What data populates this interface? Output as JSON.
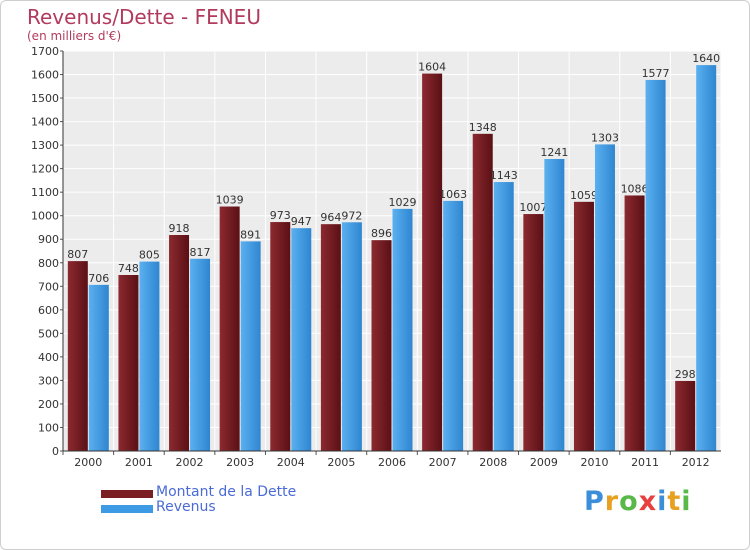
{
  "header": {
    "title": "Revenus/Dette - FENEU",
    "subtitle": "(en milliers d'€)"
  },
  "chart_data": {
    "type": "bar",
    "categories": [
      "2000",
      "2001",
      "2002",
      "2003",
      "2004",
      "2005",
      "2006",
      "2007",
      "2008",
      "2009",
      "2010",
      "2011",
      "2012"
    ],
    "series": [
      {
        "name": "Montant de la Dette",
        "values": [
          807,
          748,
          918,
          1039,
          973,
          964,
          896,
          1604,
          1348,
          1007,
          1059,
          1086,
          298
        ],
        "labels": [
          "807",
          "748",
          "918",
          "1039",
          "973",
          "964",
          "896",
          "1604",
          "1348",
          "1007",
          "1059",
          "1086",
          "298"
        ],
        "color": "#7a1e24"
      },
      {
        "name": "Revenus",
        "values": [
          706,
          805,
          817,
          891,
          947,
          972,
          1029,
          1063,
          1143,
          1241,
          1303,
          1577,
          1640
        ],
        "labels": [
          "706",
          "805",
          "817",
          "891",
          "947",
          "972",
          "1029",
          "1063",
          "1143",
          "1241",
          "1303",
          "1577",
          "1640"
        ],
        "color": "#3d9be6"
      }
    ],
    "yticks": [
      0,
      100,
      200,
      300,
      400,
      500,
      600,
      700,
      800,
      900,
      1000,
      1100,
      1200,
      1300,
      1400,
      1500,
      1600,
      1700
    ],
    "ylim": [
      0,
      1700
    ],
    "grid": true,
    "legend": "bottom-left"
  },
  "logo": {
    "letters": [
      "P",
      "r",
      "o",
      "x",
      "i",
      "t",
      "i"
    ],
    "colors": [
      "#3a8fd8",
      "#e8a020",
      "#58b848",
      "#e84040",
      "#3a8fd8",
      "#e8a020",
      "#58b848"
    ]
  }
}
